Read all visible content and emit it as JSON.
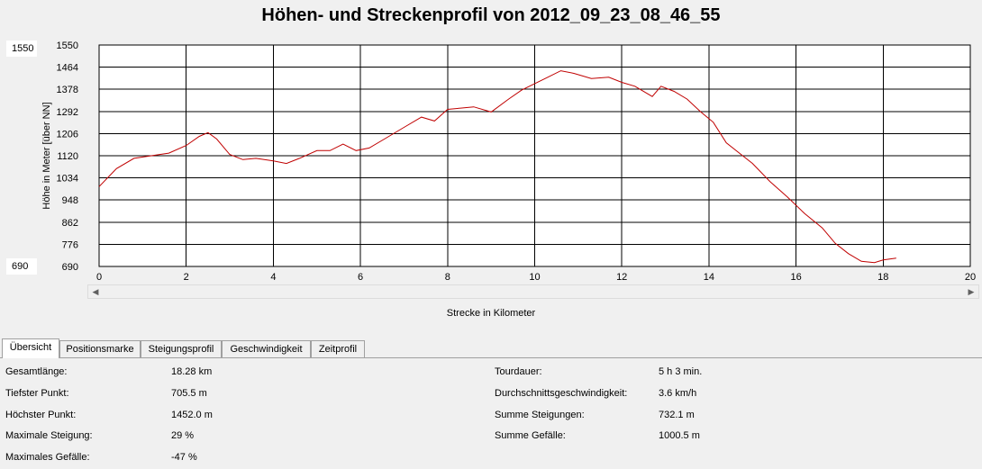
{
  "title": "Höhen- und Streckenprofil von 2012_09_23_08_46_55",
  "max_box": "1550",
  "min_box": "690",
  "ylabel": "Höhe in Meter [über NN]",
  "xlabel": "Strecke in Kilometer",
  "tabs": [
    "Übersicht",
    "Positionsmarke",
    "Steigungsprofil",
    "Geschwindigkeit",
    "Zeitprofil"
  ],
  "stats_left": [
    {
      "label": "Gesamtlänge:",
      "value": "18.28 km"
    },
    {
      "label": "Tiefster Punkt:",
      "value": "705.5 m"
    },
    {
      "label": "Höchster Punkt:",
      "value": "1452.0 m"
    },
    {
      "label": "Maximale Steigung:",
      "value": "29 %"
    },
    {
      "label": "Maximales Gefälle:",
      "value": "-47 %"
    }
  ],
  "stats_right": [
    {
      "label": "Tourdauer:",
      "value": "5 h 3 min."
    },
    {
      "label": "Durchschnittsgeschwindigkeit:",
      "value": "3.6 km/h"
    },
    {
      "label": "Summe Steigungen:",
      "value": "732.1 m"
    },
    {
      "label": "Summe Gefälle:",
      "value": "1000.5 m"
    }
  ],
  "colors": {
    "line": "#c00000",
    "grid": "#000000",
    "plot_bg": "#ffffff"
  },
  "chart_data": {
    "type": "line",
    "xlim": [
      0,
      20
    ],
    "ylim": [
      690,
      1550
    ],
    "x_ticks": [
      "0",
      "2",
      "4",
      "6",
      "8",
      "10",
      "12",
      "14",
      "16",
      "18",
      "20"
    ],
    "y_ticks": [
      "1550",
      "1464",
      "1378",
      "1292",
      "1206",
      "1120",
      "1034",
      "948",
      "862",
      "776",
      "690"
    ],
    "grid": true,
    "series": [
      {
        "x": [
          0,
          0.4,
          0.8,
          1.2,
          1.6,
          2.0,
          2.3,
          2.5,
          2.7,
          3.0,
          3.3,
          3.6,
          4.0,
          4.3,
          4.6,
          5.0,
          5.3,
          5.6,
          5.9,
          6.2,
          6.6,
          7.0,
          7.4,
          7.7,
          8.0,
          8.3,
          8.6,
          9.0,
          9.4,
          9.7,
          10.0,
          10.3,
          10.6,
          10.9,
          11.3,
          11.7,
          12.0,
          12.3,
          12.7,
          12.9,
          13.2,
          13.5,
          13.8,
          14.1,
          14.4,
          14.7,
          15.0,
          15.4,
          15.8,
          16.2,
          16.6,
          16.9,
          17.2,
          17.5,
          17.8,
          18.0,
          18.3
        ],
        "y": [
          1000,
          1070,
          1110,
          1120,
          1130,
          1160,
          1195,
          1210,
          1185,
          1125,
          1105,
          1110,
          1100,
          1090,
          1110,
          1140,
          1140,
          1165,
          1140,
          1150,
          1190,
          1230,
          1270,
          1255,
          1300,
          1305,
          1310,
          1290,
          1340,
          1375,
          1400,
          1425,
          1450,
          1440,
          1420,
          1425,
          1405,
          1390,
          1350,
          1390,
          1370,
          1340,
          1292,
          1250,
          1170,
          1130,
          1090,
          1020,
          960,
          895,
          840,
          780,
          740,
          710,
          705,
          715,
          722
        ]
      }
    ]
  }
}
